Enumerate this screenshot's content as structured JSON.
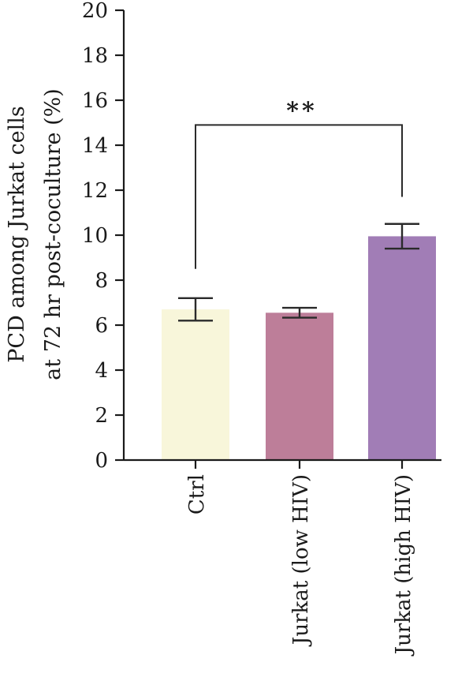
{
  "chart_data": {
    "type": "bar",
    "categories": [
      "Ctrl",
      "Jurkat (low HIV)",
      "Jurkat (high HIV)"
    ],
    "values": [
      6.7,
      6.55,
      9.95
    ],
    "errors": [
      0.5,
      0.22,
      0.55
    ],
    "colors": [
      "#f8f6da",
      "#bd7e99",
      "#a17db6"
    ],
    "ylabel_lines": [
      "PCD among Jurkat cells",
      "at 72 hr post-coculture (%)"
    ],
    "ylim": [
      0,
      20
    ],
    "yticks": [
      0,
      2,
      4,
      6,
      8,
      10,
      12,
      14,
      16,
      18,
      20
    ],
    "grid": false,
    "significance": {
      "from": 0,
      "to": 2,
      "label": "**",
      "y": 14.9
    }
  }
}
